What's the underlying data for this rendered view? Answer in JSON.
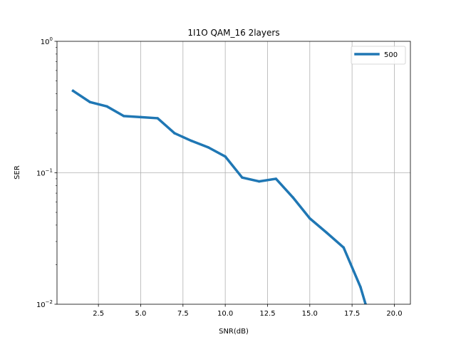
{
  "chart_data": {
    "type": "line",
    "title": "1I1O QAM_16 2layers",
    "xlabel": "SNR(dB)",
    "ylabel": "SER",
    "yscale": "log",
    "xlim": [
      0.05,
      20.95
    ],
    "ylim": [
      0.01,
      1
    ],
    "grid": true,
    "legend_position": "top-right",
    "x_ticks": [
      2.5,
      5.0,
      7.5,
      10.0,
      12.5,
      15.0,
      17.5,
      20.0
    ],
    "x_tick_labels": [
      "2.5",
      "5.0",
      "7.5",
      "10.0",
      "12.5",
      "15.0",
      "17.5",
      "20.0"
    ],
    "y_ticks": [
      0.01,
      0.1,
      1
    ],
    "y_tick_labels": [
      {
        "base": "10",
        "exp": "−2"
      },
      {
        "base": "10",
        "exp": "−1"
      },
      {
        "base": "10",
        "exp": "0"
      }
    ],
    "series": [
      {
        "name": "500",
        "color": "#1f77b4",
        "x": [
          1,
          2,
          3,
          4,
          5,
          6,
          7,
          8,
          9,
          10,
          11,
          12,
          13,
          14,
          15,
          16,
          17,
          18,
          18.3
        ],
        "y": [
          0.42,
          0.345,
          0.32,
          0.27,
          0.265,
          0.26,
          0.2,
          0.175,
          0.156,
          0.133,
          0.092,
          0.086,
          0.09,
          0.065,
          0.045,
          0.035,
          0.027,
          0.0135,
          0.01
        ]
      }
    ]
  }
}
